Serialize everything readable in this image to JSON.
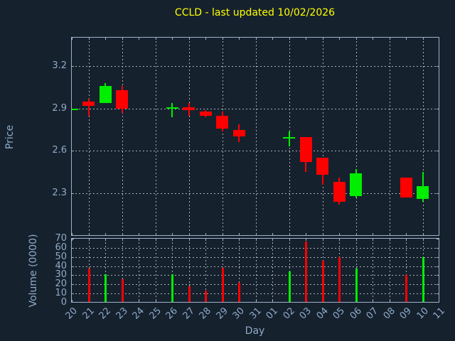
{
  "chart_data": {
    "type": "candlestick+volume",
    "title": "CCLD - last updated 10/02/2026",
    "xlabel": "Day",
    "price_ylabel": "Price",
    "volume_ylabel": "Volume (0000)",
    "x_categories": [
      "20",
      "21",
      "22",
      "23",
      "24",
      "25",
      "26",
      "27",
      "28",
      "29",
      "30",
      "31",
      "01",
      "02",
      "03",
      "04",
      "05",
      "06",
      "07",
      "08",
      "09",
      "10",
      "11"
    ],
    "price_ylim": [
      2.0,
      3.4
    ],
    "price_yticks": [
      3.2,
      2.9,
      2.6,
      2.3
    ],
    "volume_ylim": [
      0,
      70
    ],
    "volume_yticks": [
      70,
      60,
      50,
      40,
      30,
      20,
      10,
      0
    ],
    "grid": "dotted, price panel vertical grid every other day, volume panel every day, legend none",
    "candles": [
      {
        "day": "20",
        "open": 2.9,
        "high": 2.9,
        "low": 2.9,
        "close": 2.9,
        "volume": 0,
        "color": "up"
      },
      {
        "day": "21",
        "open": 2.95,
        "high": 2.97,
        "low": 2.85,
        "close": 2.92,
        "volume": 37,
        "color": "down"
      },
      {
        "day": "22",
        "open": 2.94,
        "high": 3.08,
        "low": 2.94,
        "close": 3.06,
        "volume": 31,
        "color": "up"
      },
      {
        "day": "23",
        "open": 3.03,
        "high": 3.06,
        "low": 2.87,
        "close": 2.9,
        "volume": 26,
        "color": "down"
      },
      {
        "day": "26",
        "open": 2.9,
        "high": 2.94,
        "low": 2.84,
        "close": 2.91,
        "volume": 31,
        "color": "up"
      },
      {
        "day": "27",
        "open": 2.91,
        "high": 2.94,
        "low": 2.85,
        "close": 2.89,
        "volume": 18,
        "color": "down"
      },
      {
        "day": "28",
        "open": 2.88,
        "high": 2.89,
        "low": 2.84,
        "close": 2.85,
        "volume": 13,
        "color": "down"
      },
      {
        "day": "29",
        "open": 2.85,
        "high": 2.88,
        "low": 2.74,
        "close": 2.76,
        "volume": 38,
        "color": "down"
      },
      {
        "day": "30",
        "open": 2.75,
        "high": 2.79,
        "low": 2.66,
        "close": 2.7,
        "volume": 22,
        "color": "down"
      },
      {
        "day": "02",
        "open": 2.69,
        "high": 2.74,
        "low": 2.63,
        "close": 2.7,
        "volume": 34,
        "color": "up"
      },
      {
        "day": "03",
        "open": 2.7,
        "high": 2.7,
        "low": 2.45,
        "close": 2.52,
        "volume": 67,
        "color": "down"
      },
      {
        "day": "04",
        "open": 2.55,
        "high": 2.55,
        "low": 2.36,
        "close": 2.43,
        "volume": 46,
        "color": "down"
      },
      {
        "day": "05",
        "open": 2.38,
        "high": 2.41,
        "low": 2.22,
        "close": 2.24,
        "volume": 50,
        "color": "down"
      },
      {
        "day": "06",
        "open": 2.28,
        "high": 2.47,
        "low": 2.27,
        "close": 2.44,
        "volume": 37,
        "color": "up"
      },
      {
        "day": "09",
        "open": 2.41,
        "high": 2.41,
        "low": 2.27,
        "close": 2.27,
        "volume": 30,
        "color": "down"
      },
      {
        "day": "10",
        "open": 2.26,
        "high": 2.45,
        "low": 2.24,
        "close": 2.35,
        "volume": 50,
        "color": "up"
      }
    ],
    "colors": {
      "background": "#16212e",
      "axis": "#9cb3c9",
      "tick_text": "#8fabc8",
      "grid": "#a9afb6",
      "up": "#00ee00",
      "down": "#ff0000",
      "title": "#ffff00"
    }
  }
}
